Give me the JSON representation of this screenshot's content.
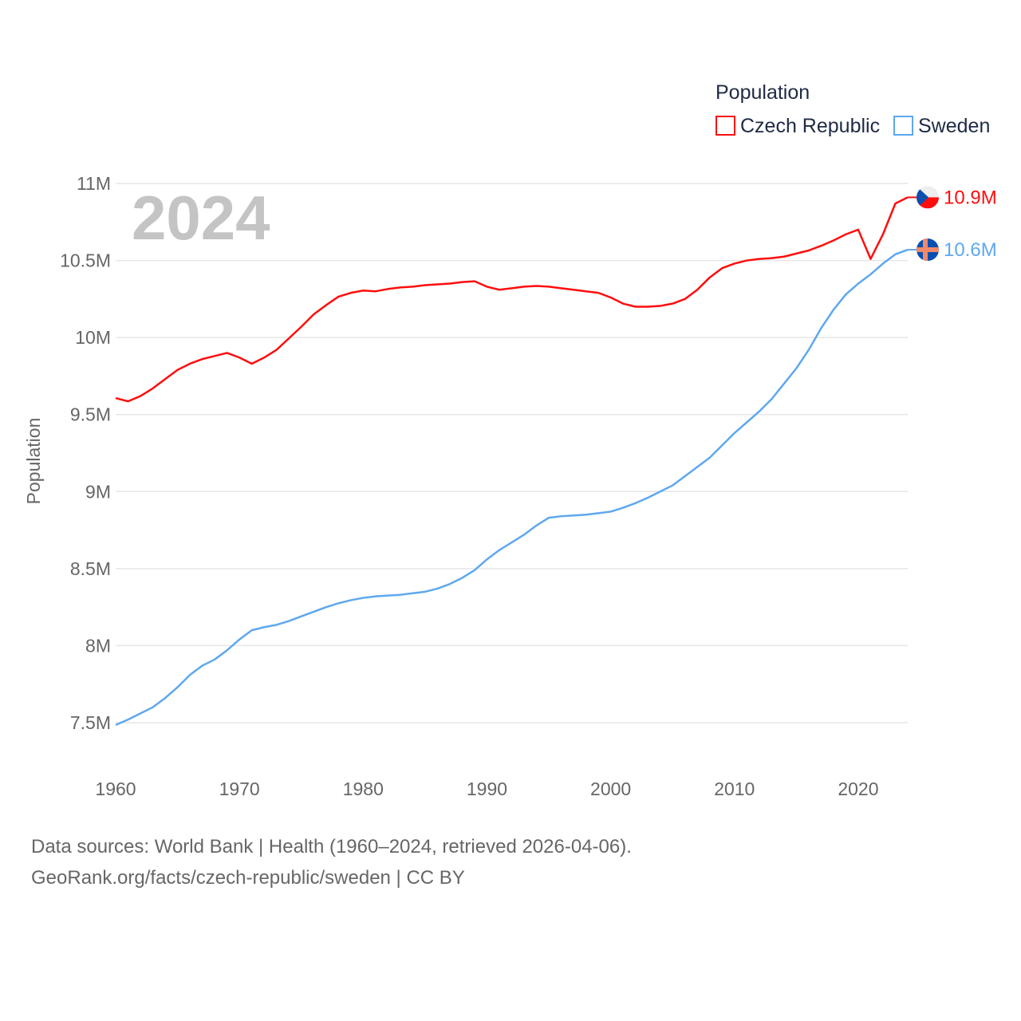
{
  "chart_data": {
    "type": "line",
    "title": "",
    "legend_title": "Population",
    "legend_position": "top-right",
    "year_label": "2024",
    "xlabel": "",
    "ylabel": "Population",
    "xlim": [
      1960,
      2024
    ],
    "ylim": [
      7.5,
      11
    ],
    "x_ticks": [
      1960,
      1970,
      1980,
      1990,
      2000,
      2010,
      2020
    ],
    "y_ticks": [
      {
        "value": 7.5,
        "label": "7.5M"
      },
      {
        "value": 8,
        "label": "8M"
      },
      {
        "value": 8.5,
        "label": "8.5M"
      },
      {
        "value": 9,
        "label": "9M"
      },
      {
        "value": 9.5,
        "label": "9.5M"
      },
      {
        "value": 10,
        "label": "10M"
      },
      {
        "value": 10.5,
        "label": "10.5M"
      },
      {
        "value": 11,
        "label": "11M"
      }
    ],
    "grid": true,
    "x_start": 1960,
    "series": [
      {
        "name": "Czech Republic",
        "color": "#ff0d0d",
        "end_label": "10.9M",
        "flag": "czech-flag",
        "values": [
          9.607,
          9.586,
          9.62,
          9.67,
          9.73,
          9.79,
          9.83,
          9.86,
          9.88,
          9.9,
          9.87,
          9.83,
          9.87,
          9.92,
          9.995,
          10.07,
          10.15,
          10.21,
          10.265,
          10.29,
          10.305,
          10.3,
          10.315,
          10.325,
          10.33,
          10.34,
          10.345,
          10.35,
          10.36,
          10.365,
          10.33,
          10.31,
          10.32,
          10.33,
          10.335,
          10.33,
          10.32,
          10.31,
          10.3,
          10.29,
          10.26,
          10.22,
          10.2,
          10.2,
          10.205,
          10.22,
          10.25,
          10.31,
          10.39,
          10.45,
          10.48,
          10.5,
          10.51,
          10.515,
          10.525,
          10.545,
          10.565,
          10.595,
          10.63,
          10.67,
          10.7,
          10.51,
          10.67,
          10.87,
          10.91
        ]
      },
      {
        "name": "Sweden",
        "color": "#5ea8ee",
        "end_label": "10.6M",
        "flag": "sweden-flag",
        "values": [
          7.485,
          7.52,
          7.56,
          7.6,
          7.66,
          7.73,
          7.81,
          7.87,
          7.91,
          7.97,
          8.04,
          8.1,
          8.12,
          8.135,
          8.16,
          8.19,
          8.22,
          8.25,
          8.275,
          8.295,
          8.31,
          8.32,
          8.325,
          8.33,
          8.34,
          8.35,
          8.37,
          8.4,
          8.44,
          8.49,
          8.56,
          8.62,
          8.67,
          8.72,
          8.78,
          8.83,
          8.84,
          8.845,
          8.85,
          8.86,
          8.87,
          8.895,
          8.925,
          8.96,
          9.0,
          9.04,
          9.1,
          9.16,
          9.22,
          9.3,
          9.38,
          9.45,
          9.52,
          9.6,
          9.7,
          9.8,
          9.92,
          10.06,
          10.18,
          10.28,
          10.35,
          10.41,
          10.48,
          10.54,
          10.57
        ]
      }
    ]
  },
  "footer": {
    "line1": "Data sources: World Bank | Health (1960–2024, retrieved 2026-04-06).",
    "line2": "GeoRank.org/facts/czech-republic/sweden | CC BY"
  }
}
